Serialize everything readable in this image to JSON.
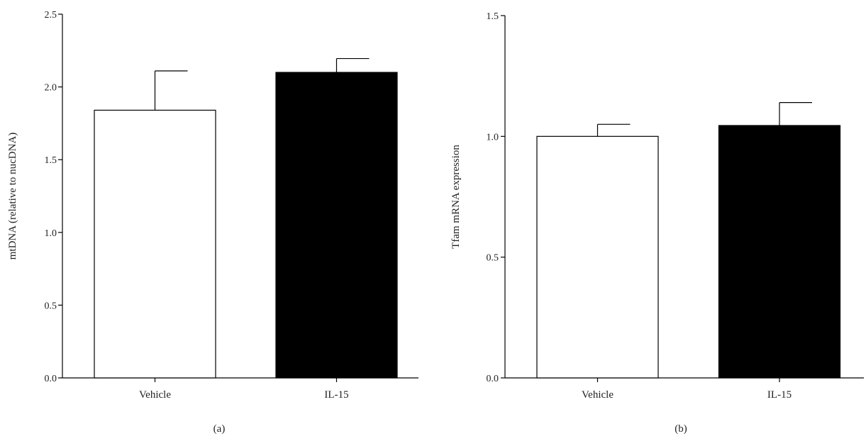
{
  "chart_data": [
    {
      "type": "bar",
      "panel_label": "(a)",
      "categories": [
        "Vehicle",
        "IL-15"
      ],
      "values": [
        1.84,
        2.1
      ],
      "errors": [
        0.27,
        0.095
      ],
      "bar_fills": [
        "#ffffff",
        "#000000"
      ],
      "ylabel": "mtDNA (relative to nucDNA)",
      "xlabel": "",
      "ylim": [
        0,
        2.5
      ],
      "yticks": [
        "0.0",
        "0.5",
        "1.0",
        "1.5",
        "2.0",
        "2.5"
      ],
      "grid": false
    },
    {
      "type": "bar",
      "panel_label": "(b)",
      "categories": [
        "Vehicle",
        "IL-15"
      ],
      "values": [
        1.0,
        1.045
      ],
      "errors": [
        0.05,
        0.095
      ],
      "bar_fills": [
        "#ffffff",
        "#000000"
      ],
      "ylabel": "Tfam mRNA expression",
      "xlabel": "",
      "ylim": [
        0,
        1.5
      ],
      "yticks": [
        "0.0",
        "0.5",
        "1.0",
        "1.5"
      ],
      "grid": false
    }
  ]
}
